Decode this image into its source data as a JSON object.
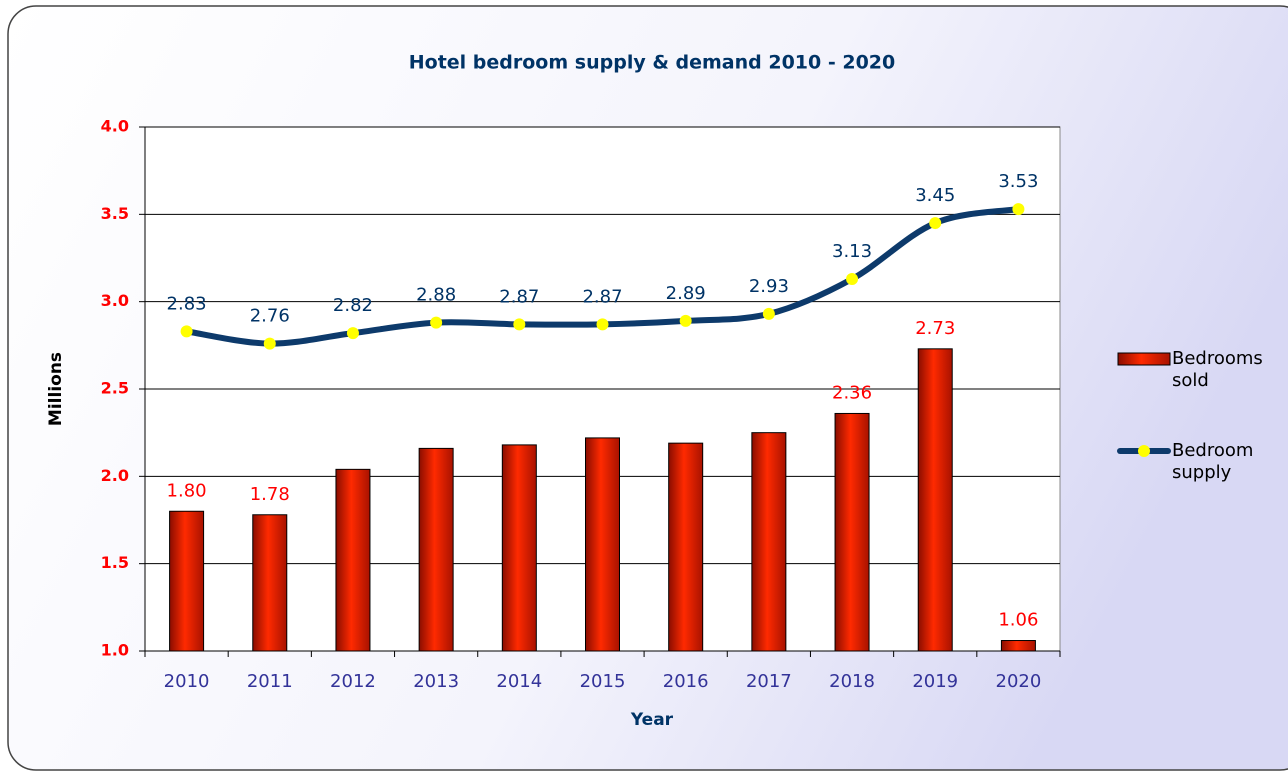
{
  "chart_data": {
    "type": "bar_line",
    "title": "Hotel bedroom supply & demand 2010 - 2020",
    "x_label": "Year",
    "y_label": "Millions",
    "categories": [
      "2010",
      "2011",
      "2012",
      "2013",
      "2014",
      "2015",
      "2016",
      "2017",
      "2018",
      "2019",
      "2020"
    ],
    "series": [
      {
        "name": "Bedrooms sold",
        "type": "bar",
        "color": "#ff2a00",
        "values": [
          1.8,
          1.78,
          2.04,
          2.16,
          2.18,
          2.22,
          2.19,
          2.25,
          2.36,
          2.73,
          1.06
        ],
        "value_labels": [
          "1.80",
          "1.78",
          null,
          null,
          null,
          null,
          null,
          null,
          "2.36",
          "2.73",
          "1.06"
        ]
      },
      {
        "name": "Bedroom supply",
        "type": "line",
        "color": "#0d3a6b",
        "marker_color": "#ffff00",
        "values": [
          2.83,
          2.76,
          2.82,
          2.88,
          2.87,
          2.87,
          2.89,
          2.93,
          3.13,
          3.45,
          3.53
        ]
      }
    ],
    "ylim": [
      1,
      4
    ],
    "yticks": [
      {
        "value": 1,
        "label": "1.0"
      },
      1.5,
      {
        "value": 2,
        "label": "2.0"
      },
      2.5,
      {
        "value": 3,
        "label": "3.0"
      },
      3.5,
      {
        "value": 4,
        "label": "4.0"
      }
    ],
    "grid": true,
    "legend": "right"
  }
}
